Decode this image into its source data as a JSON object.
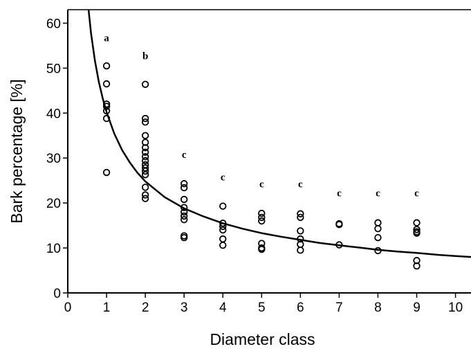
{
  "chart_data": {
    "type": "scatter",
    "title": "",
    "xlabel": "Diameter class",
    "ylabel": "Bark percentage [%]",
    "xlim": [
      0,
      10.4
    ],
    "ylim": [
      0,
      63
    ],
    "xticks": [
      "0",
      "1",
      "2",
      "3",
      "4",
      "5",
      "6",
      "7",
      "8",
      "9",
      "10"
    ],
    "yticks": [
      "0",
      "10",
      "20",
      "30",
      "40",
      "50",
      "60"
    ],
    "grid": false,
    "legend": "none",
    "points": [
      {
        "x": 1,
        "y": 50.5
      },
      {
        "x": 1,
        "y": 46.5
      },
      {
        "x": 1,
        "y": 42
      },
      {
        "x": 1,
        "y": 41.5
      },
      {
        "x": 1,
        "y": 40.5
      },
      {
        "x": 1,
        "y": 38.8
      },
      {
        "x": 1,
        "y": 26.8
      },
      {
        "x": 2,
        "y": 46.4
      },
      {
        "x": 2,
        "y": 38.8
      },
      {
        "x": 2,
        "y": 38
      },
      {
        "x": 2,
        "y": 35
      },
      {
        "x": 2,
        "y": 33.5
      },
      {
        "x": 2,
        "y": 32.3
      },
      {
        "x": 2,
        "y": 31.3
      },
      {
        "x": 2,
        "y": 30.3
      },
      {
        "x": 2,
        "y": 29.4
      },
      {
        "x": 2,
        "y": 28.5
      },
      {
        "x": 2,
        "y": 27.8
      },
      {
        "x": 2,
        "y": 27.1
      },
      {
        "x": 2,
        "y": 26.3
      },
      {
        "x": 2,
        "y": 23.5
      },
      {
        "x": 2,
        "y": 21.8
      },
      {
        "x": 2,
        "y": 21
      },
      {
        "x": 3,
        "y": 24.3
      },
      {
        "x": 3,
        "y": 23.4
      },
      {
        "x": 3,
        "y": 20.8
      },
      {
        "x": 3,
        "y": 19
      },
      {
        "x": 3,
        "y": 18
      },
      {
        "x": 3,
        "y": 17.1
      },
      {
        "x": 3,
        "y": 16.3
      },
      {
        "x": 3,
        "y": 12.7
      },
      {
        "x": 3,
        "y": 12.3
      },
      {
        "x": 4,
        "y": 19.3
      },
      {
        "x": 4,
        "y": 15.5
      },
      {
        "x": 4,
        "y": 14.8
      },
      {
        "x": 4,
        "y": 14
      },
      {
        "x": 4,
        "y": 12
      },
      {
        "x": 4,
        "y": 10.6
      },
      {
        "x": 5,
        "y": 17.7
      },
      {
        "x": 5,
        "y": 16.8
      },
      {
        "x": 5,
        "y": 16
      },
      {
        "x": 5,
        "y": 11
      },
      {
        "x": 5,
        "y": 10
      },
      {
        "x": 5,
        "y": 9.7
      },
      {
        "x": 6,
        "y": 17.6
      },
      {
        "x": 6,
        "y": 16.8
      },
      {
        "x": 6,
        "y": 13.8
      },
      {
        "x": 6,
        "y": 12
      },
      {
        "x": 6,
        "y": 10.8
      },
      {
        "x": 6,
        "y": 9.5
      },
      {
        "x": 7,
        "y": 15.4
      },
      {
        "x": 7,
        "y": 15.2
      },
      {
        "x": 7,
        "y": 10.7
      },
      {
        "x": 8,
        "y": 15.6
      },
      {
        "x": 8,
        "y": 14.3
      },
      {
        "x": 8,
        "y": 12.3
      },
      {
        "x": 8,
        "y": 9.4
      },
      {
        "x": 9,
        "y": 15.6
      },
      {
        "x": 9,
        "y": 14.1
      },
      {
        "x": 9,
        "y": 13.6
      },
      {
        "x": 9,
        "y": 13.3
      },
      {
        "x": 9,
        "y": 7.2
      },
      {
        "x": 9,
        "y": 6
      }
    ],
    "fit_curve": [
      {
        "x": 0.5,
        "y": 66
      },
      {
        "x": 0.6,
        "y": 57.8
      },
      {
        "x": 0.7,
        "y": 51.7
      },
      {
        "x": 0.8,
        "y": 47
      },
      {
        "x": 0.9,
        "y": 43.3
      },
      {
        "x": 1,
        "y": 40.2
      },
      {
        "x": 1.2,
        "y": 35.4
      },
      {
        "x": 1.4,
        "y": 31.8
      },
      {
        "x": 1.6,
        "y": 29
      },
      {
        "x": 1.8,
        "y": 26.7
      },
      {
        "x": 2,
        "y": 24.8
      },
      {
        "x": 2.5,
        "y": 21.3
      },
      {
        "x": 3,
        "y": 18.8
      },
      {
        "x": 3.5,
        "y": 17
      },
      {
        "x": 4,
        "y": 15.5
      },
      {
        "x": 4.5,
        "y": 14.3
      },
      {
        "x": 5,
        "y": 13.3
      },
      {
        "x": 5.5,
        "y": 12.5
      },
      {
        "x": 6,
        "y": 11.8
      },
      {
        "x": 6.5,
        "y": 11.1
      },
      {
        "x": 7,
        "y": 10.6
      },
      {
        "x": 7.5,
        "y": 10.1
      },
      {
        "x": 8,
        "y": 9.6
      },
      {
        "x": 8.5,
        "y": 9.2
      },
      {
        "x": 9,
        "y": 8.9
      },
      {
        "x": 9.5,
        "y": 8.5
      },
      {
        "x": 10,
        "y": 8.2
      },
      {
        "x": 10.4,
        "y": 8
      }
    ],
    "group_letters": [
      {
        "x": 1,
        "y": 56,
        "label": "a"
      },
      {
        "x": 2,
        "y": 52,
        "label": "b"
      },
      {
        "x": 3,
        "y": 30,
        "label": "c"
      },
      {
        "x": 4,
        "y": 25,
        "label": "c"
      },
      {
        "x": 5,
        "y": 23.5,
        "label": "c"
      },
      {
        "x": 6,
        "y": 23.5,
        "label": "c"
      },
      {
        "x": 7,
        "y": 21.5,
        "label": "c"
      },
      {
        "x": 8,
        "y": 21.5,
        "label": "c"
      },
      {
        "x": 9,
        "y": 21.5,
        "label": "c"
      }
    ]
  }
}
